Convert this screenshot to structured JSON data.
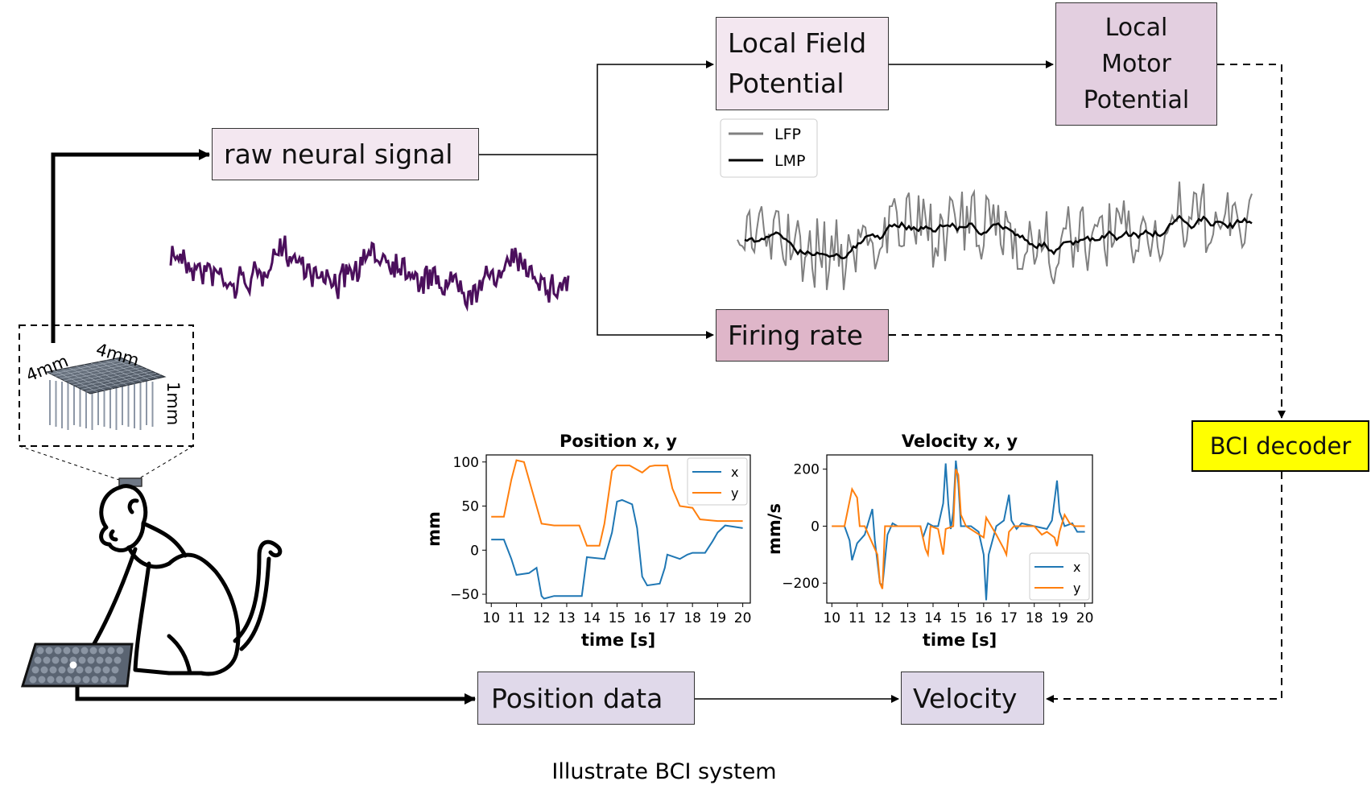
{
  "boxes": {
    "raw_signal": "raw neural signal",
    "lfp": "Local Field\nPotential",
    "lmp": "Local\nMotor\nPotential",
    "firing_rate": "Firing rate",
    "bci_decoder": "BCI decoder",
    "position_data": "Position data",
    "velocity": "Velocity"
  },
  "array_labels": {
    "width": "4mm",
    "depth": "4mm",
    "height": "1mm"
  },
  "signal_legend": {
    "lfp": "LFP",
    "lmp": "LMP"
  },
  "caption": "Illustrate BCI system",
  "colors": {
    "raw_signal": "#4b0f5c",
    "lfp": "#808080",
    "lmp": "#000000",
    "x_series": "#1f77b4",
    "y_series": "#ff7f0e",
    "decoder": "#ffff00"
  },
  "chart_data": [
    {
      "type": "line",
      "title": "Position x, y",
      "xlabel": "time [s]",
      "ylabel": "mm",
      "xlim": [
        9.8,
        20.3
      ],
      "ylim": [
        -60,
        108
      ],
      "xticks": [
        10,
        11,
        12,
        13,
        14,
        15,
        16,
        17,
        18,
        19,
        20
      ],
      "yticks": [
        -50,
        0,
        50,
        100
      ],
      "legend": "top-right",
      "grid": false,
      "series": [
        {
          "name": "x",
          "color": "#1f77b4",
          "points": [
            [
              10,
              12
            ],
            [
              10.5,
              12
            ],
            [
              10.8,
              -10
            ],
            [
              11,
              -28
            ],
            [
              11.5,
              -26
            ],
            [
              11.8,
              -20
            ],
            [
              12,
              -52
            ],
            [
              12.1,
              -55
            ],
            [
              12.5,
              -52
            ],
            [
              13.6,
              -52
            ],
            [
              13.8,
              -8
            ],
            [
              14.5,
              -10
            ],
            [
              14.8,
              20
            ],
            [
              15,
              55
            ],
            [
              15.2,
              57
            ],
            [
              15.6,
              52
            ],
            [
              15.8,
              25
            ],
            [
              16,
              -30
            ],
            [
              16.2,
              -40
            ],
            [
              16.7,
              -38
            ],
            [
              16.9,
              -20
            ],
            [
              17,
              -5
            ],
            [
              17.5,
              -10
            ],
            [
              17.8,
              -5
            ],
            [
              18,
              -3
            ],
            [
              18.5,
              -3
            ],
            [
              18.8,
              10
            ],
            [
              19,
              20
            ],
            [
              19.3,
              28
            ],
            [
              20,
              25
            ]
          ]
        },
        {
          "name": "y",
          "color": "#ff7f0e",
          "points": [
            [
              10,
              38
            ],
            [
              10.5,
              38
            ],
            [
              10.8,
              80
            ],
            [
              11,
              102
            ],
            [
              11.3,
              100
            ],
            [
              11.6,
              70
            ],
            [
              12,
              30
            ],
            [
              12.5,
              28
            ],
            [
              13.5,
              28
            ],
            [
              13.8,
              5
            ],
            [
              14.3,
              5
            ],
            [
              14.5,
              30
            ],
            [
              14.8,
              90
            ],
            [
              15,
              96
            ],
            [
              15.5,
              96
            ],
            [
              16,
              88
            ],
            [
              16.3,
              95
            ],
            [
              16.5,
              96
            ],
            [
              17,
              96
            ],
            [
              17.2,
              70
            ],
            [
              17.5,
              50
            ],
            [
              18,
              48
            ],
            [
              18.3,
              35
            ],
            [
              19,
              33
            ],
            [
              19.5,
              33
            ],
            [
              20,
              33
            ]
          ]
        }
      ]
    },
    {
      "type": "line",
      "title": "Velocity x, y",
      "xlabel": "time [s]",
      "ylabel": "mm/s",
      "xlim": [
        9.8,
        20.3
      ],
      "ylim": [
        -270,
        250
      ],
      "xticks": [
        10,
        11,
        12,
        13,
        14,
        15,
        16,
        17,
        18,
        19,
        20
      ],
      "yticks": [
        -200,
        0,
        200
      ],
      "legend": "bottom-right",
      "grid": false,
      "series": [
        {
          "name": "x",
          "color": "#1f77b4",
          "points": [
            [
              10,
              0
            ],
            [
              10.5,
              0
            ],
            [
              10.7,
              -50
            ],
            [
              10.8,
              -120
            ],
            [
              11,
              -60
            ],
            [
              11.3,
              -30
            ],
            [
              11.5,
              30
            ],
            [
              11.6,
              60
            ],
            [
              11.7,
              -50
            ],
            [
              11.9,
              -200
            ],
            [
              12,
              -210
            ],
            [
              12.2,
              -30
            ],
            [
              12.4,
              10
            ],
            [
              12.6,
              0
            ],
            [
              13.5,
              0
            ],
            [
              13.6,
              -40
            ],
            [
              13.8,
              10
            ],
            [
              14,
              0
            ],
            [
              14.2,
              0
            ],
            [
              14.4,
              80
            ],
            [
              14.5,
              220
            ],
            [
              14.6,
              80
            ],
            [
              14.7,
              -10
            ],
            [
              14.8,
              50
            ],
            [
              14.9,
              230
            ],
            [
              15,
              150
            ],
            [
              15.1,
              0
            ],
            [
              15.5,
              0
            ],
            [
              15.8,
              -20
            ],
            [
              16,
              -100
            ],
            [
              16.1,
              -260
            ],
            [
              16.2,
              -100
            ],
            [
              16.5,
              0
            ],
            [
              16.8,
              20
            ],
            [
              17,
              110
            ],
            [
              17.1,
              20
            ],
            [
              17.3,
              -10
            ],
            [
              17.5,
              10
            ],
            [
              18,
              0
            ],
            [
              18.5,
              -10
            ],
            [
              18.7,
              20
            ],
            [
              18.9,
              160
            ],
            [
              19,
              50
            ],
            [
              19.2,
              0
            ],
            [
              19.5,
              10
            ],
            [
              19.7,
              -20
            ],
            [
              20,
              -20
            ]
          ]
        },
        {
          "name": "y",
          "color": "#ff7f0e",
          "points": [
            [
              10,
              0
            ],
            [
              10.5,
              0
            ],
            [
              10.8,
              130
            ],
            [
              11,
              100
            ],
            [
              11.1,
              0
            ],
            [
              11.3,
              0
            ],
            [
              11.8,
              -100
            ],
            [
              11.9,
              -200
            ],
            [
              12,
              -220
            ],
            [
              12.1,
              0
            ],
            [
              12.5,
              0
            ],
            [
              13,
              0
            ],
            [
              13.5,
              0
            ],
            [
              13.7,
              -80
            ],
            [
              13.8,
              -100
            ],
            [
              13.9,
              0
            ],
            [
              14.2,
              -10
            ],
            [
              14.4,
              -100
            ],
            [
              14.5,
              -10
            ],
            [
              14.8,
              0
            ],
            [
              14.9,
              200
            ],
            [
              15,
              180
            ],
            [
              15.1,
              40
            ],
            [
              15.3,
              0
            ],
            [
              16,
              -40
            ],
            [
              16.1,
              30
            ],
            [
              16.3,
              0
            ],
            [
              16.5,
              -30
            ],
            [
              16.8,
              -80
            ],
            [
              16.9,
              -100
            ],
            [
              17,
              -20
            ],
            [
              17.2,
              0
            ],
            [
              17.5,
              0
            ],
            [
              18,
              0
            ],
            [
              18.3,
              -30
            ],
            [
              18.5,
              -20
            ],
            [
              18.8,
              -40
            ],
            [
              18.9,
              -70
            ],
            [
              19,
              -20
            ],
            [
              19.2,
              40
            ],
            [
              19.4,
              10
            ],
            [
              19.6,
              0
            ],
            [
              20,
              0
            ]
          ]
        }
      ]
    }
  ]
}
